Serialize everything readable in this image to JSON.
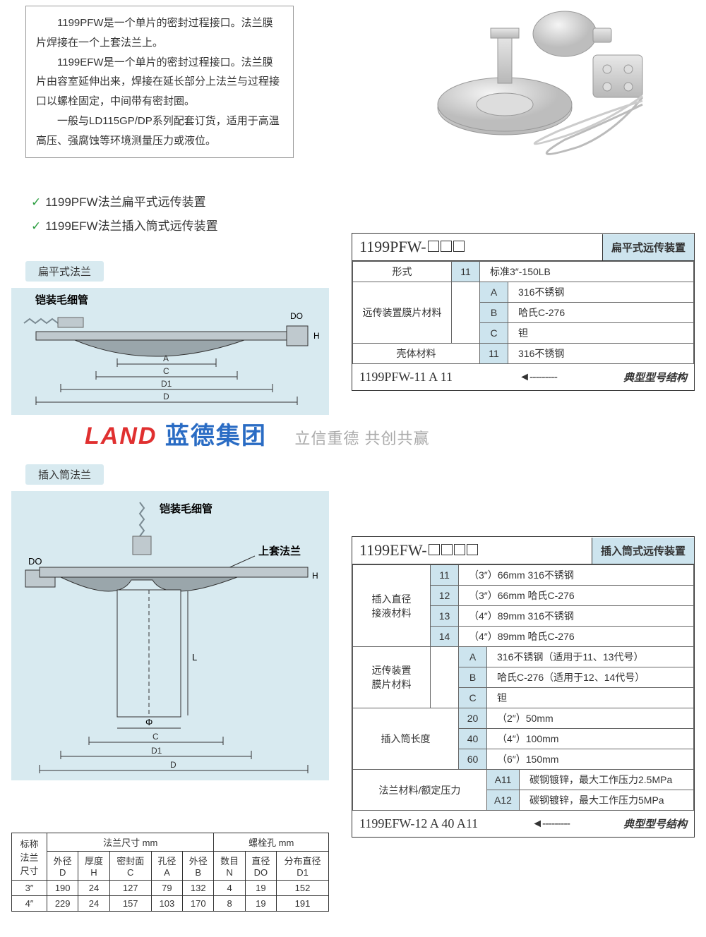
{
  "intro": {
    "p1": "1199PFW是一个单片的密封过程接口。法兰膜片焊接在一个上套法兰上。",
    "p2": "1199EFW是一个单片的密封过程接口。法兰膜片由容室延伸出来，焊接在延长部分上法兰与过程接口以螺栓固定，中间带有密封圈。",
    "p3": "一般与LD115GP/DP系列配套订货，适用于高温高压、强腐蚀等环境测量压力或液位。"
  },
  "features": {
    "a": "1199PFW法兰扁平式远传装置",
    "b": "1199EFW法兰插入筒式远传装置"
  },
  "diag_headers": {
    "flat": "扁平式法兰",
    "insert": "插入筒法兰"
  },
  "diag_labels": {
    "capillary": "铠装毛细管",
    "upper_flange": "上套法兰",
    "A": "A",
    "C": "C",
    "D1": "D1",
    "D": "D",
    "DO": "DO",
    "H": "H",
    "L": "L",
    "phi": "Φ"
  },
  "watermark": {
    "logo_red": "LAND",
    "logo_blue": "蓝德集团",
    "tagline": "立信重德 共创共赢"
  },
  "spec1": {
    "model_prefix": "1199PFW-",
    "label": "扁平式远传装置",
    "r_form": "形式",
    "r_form_code": "11",
    "r_form_val": "标准3″-150LB",
    "r_mat": "远传装置膜片材料",
    "mat_A": "A",
    "mat_A_v": "316不锈钢",
    "mat_B": "B",
    "mat_B_v": "哈氏C-276",
    "mat_C": "C",
    "mat_C_v": "钽",
    "r_shell": "壳体材料",
    "r_shell_code": "11",
    "r_shell_val": "316不锈钢",
    "example": "1199PFW-11 A 11",
    "example_tag": "典型型号结构"
  },
  "spec2": {
    "model_prefix": "1199EFW-",
    "label": "插入筒式远传装置",
    "r_diam": "插入直径\n接液材料",
    "d_11": "11",
    "d_11_v": "（3″）66mm  316不锈钢",
    "d_12": "12",
    "d_12_v": "（3″）66mm  哈氏C-276",
    "d_13": "13",
    "d_13_v": "（4″）89mm  316不锈钢",
    "d_14": "14",
    "d_14_v": "（4″）89mm  哈氏C-276",
    "r_mat": "远传装置\n膜片材料",
    "mat_A": "A",
    "mat_A_v": "316不锈钢（适用于11、13代号）",
    "mat_B": "B",
    "mat_B_v": "哈氏C-276（适用于12、14代号）",
    "mat_C": "C",
    "mat_C_v": "钽",
    "r_len": "插入筒长度",
    "l_20": "20",
    "l_20_v": "（2″）50mm",
    "l_40": "40",
    "l_40_v": "（4″）100mm",
    "l_60": "60",
    "l_60_v": "（6″）150mm",
    "r_fl": "法兰材料/额定压力",
    "f_A11": "A11",
    "f_A11_v": "碳钢镀锌，最大工作压力2.5MPa",
    "f_A12": "A12",
    "f_A12_v": "碳钢镀锌，最大工作压力5MPa",
    "example": "1199EFW-12 A 40 A11",
    "example_tag": "典型型号结构"
  },
  "dimtbl": {
    "h_flange": "法兰尺寸 mm",
    "h_bolt": "螺栓孔 mm",
    "c_nom": "标称法兰尺寸",
    "c_D": "外径\nD",
    "c_H": "厚度\nH",
    "c_C": "密封面\nC",
    "c_A": "孔径\nA",
    "c_B": "外径\nB",
    "c_N": "数目\nN",
    "c_DO": "直径\nDO",
    "c_D1": "分布直径\nD1",
    "rows": [
      [
        "3″",
        "190",
        "24",
        "127",
        "79",
        "132",
        "4",
        "19",
        "152"
      ],
      [
        "4″",
        "229",
        "24",
        "157",
        "103",
        "170",
        "8",
        "19",
        "191"
      ]
    ]
  },
  "colors": {
    "panel": "#d8eaf0",
    "code_bg": "#cde4ee"
  }
}
